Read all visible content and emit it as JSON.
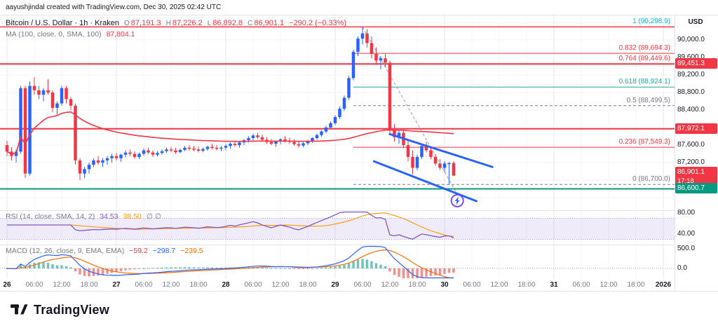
{
  "attribution": "aayushjindal created with TradingView.com, Dec 30, 2025 02:42 UTC",
  "header": {
    "symbol_line": "Bitcoin / U.S. Dollar · 1h · Kraken",
    "ohlc": [
      {
        "k": "O",
        "v": "87,191.3"
      },
      {
        "k": "H",
        "v": "87,226.2"
      },
      {
        "k": "L",
        "v": "86,892.8"
      },
      {
        "k": "C",
        "v": "86,901.1"
      }
    ],
    "change": "−290.2 (−0.33%)",
    "ma_label": "MA (100, close, 0, SMA, 100)",
    "ma_value": "87,804.1"
  },
  "legends": {
    "rsi_label": "RSI (14, close, SMA, 14, 2)",
    "rsi_v1": "34.53",
    "rsi_v2": "38.50",
    "rsi_extra": "∅ ∅",
    "macd_label": "MACD (12, 26, close, 9, EMA, EMA)",
    "macd_hist": "−59.2",
    "macd_main": "−298.7",
    "macd_signal": "−239.5"
  },
  "axis": {
    "currency": "USD"
  },
  "footer": {
    "brand": "TradingView"
  },
  "theme": {
    "up": "#2962ff",
    "down": "#f23645",
    "ma": "#f23645",
    "rsi": "#7e57c2",
    "rsi_ma": "#ff9800",
    "band": "#7e57c2",
    "macd": "#2962ff",
    "signal": "#ff6d00",
    "hist_up": "#26a69a",
    "hist_down": "#ef5350"
  },
  "chart_data": {
    "type": "candlestick",
    "symbol": "Bitcoin / U.S. Dollar",
    "exchange": "Kraken",
    "interval": "1h",
    "start_time_label": "Dec 26, 00:00 UTC",
    "end_time_label": "Dec 30, 02:00 UTC",
    "candles": [
      [
        87600,
        87700,
        87350,
        87450
      ],
      [
        87450,
        87550,
        87250,
        87350
      ],
      [
        87350,
        87500,
        87200,
        87450
      ],
      [
        87450,
        88950,
        87400,
        88900
      ],
      [
        88900,
        88950,
        86850,
        86950
      ],
      [
        86950,
        89050,
        86900,
        88950
      ],
      [
        88950,
        89150,
        88750,
        88850
      ],
      [
        88850,
        88950,
        88650,
        88750
      ],
      [
        88750,
        88900,
        88600,
        88850
      ],
      [
        88850,
        89100,
        88750,
        88800
      ],
      [
        88800,
        88850,
        88350,
        88450
      ],
      [
        88450,
        88600,
        88300,
        88550
      ],
      [
        88550,
        88950,
        88500,
        88900
      ],
      [
        88900,
        88950,
        88550,
        88650
      ],
      [
        88650,
        88700,
        88400,
        88500
      ],
      [
        88500,
        88550,
        87150,
        87250
      ],
      [
        87250,
        87300,
        86800,
        86950
      ],
      [
        86950,
        87100,
        86850,
        87050
      ],
      [
        87050,
        87200,
        86950,
        87150
      ],
      [
        87150,
        87300,
        87100,
        87250
      ],
      [
        87250,
        87350,
        87150,
        87200
      ],
      [
        87200,
        87300,
        87100,
        87250
      ],
      [
        87250,
        87350,
        87150,
        87300
      ],
      [
        87300,
        87400,
        87200,
        87350
      ],
      [
        87350,
        87420,
        87250,
        87300
      ],
      [
        87300,
        87400,
        87220,
        87380
      ],
      [
        87380,
        87480,
        87320,
        87430
      ],
      [
        87430,
        87500,
        87350,
        87400
      ],
      [
        87400,
        87460,
        87280,
        87330
      ],
      [
        87330,
        87430,
        87280,
        87400
      ],
      [
        87400,
        87520,
        87360,
        87480
      ],
      [
        87480,
        87540,
        87400,
        87430
      ],
      [
        87430,
        87480,
        87330,
        87380
      ],
      [
        87380,
        87460,
        87340,
        87420
      ],
      [
        87420,
        87500,
        87380,
        87460
      ],
      [
        87460,
        87540,
        87420,
        87500
      ],
      [
        87500,
        87560,
        87440,
        87480
      ],
      [
        87480,
        87530,
        87400,
        87440
      ],
      [
        87440,
        87520,
        87410,
        87490
      ],
      [
        87490,
        87580,
        87460,
        87540
      ],
      [
        87540,
        87600,
        87480,
        87520
      ],
      [
        87520,
        87580,
        87460,
        87500
      ],
      [
        87500,
        87560,
        87430,
        87470
      ],
      [
        87470,
        87540,
        87440,
        87510
      ],
      [
        87510,
        87590,
        87470,
        87560
      ],
      [
        87560,
        87630,
        87500,
        87540
      ],
      [
        87540,
        87600,
        87480,
        87520
      ],
      [
        87520,
        87580,
        87460,
        87540
      ],
      [
        87540,
        87620,
        87480,
        87580
      ],
      [
        87580,
        87660,
        87520,
        87630
      ],
      [
        87630,
        87700,
        87560,
        87600
      ],
      [
        87600,
        87680,
        87540,
        87660
      ],
      [
        87660,
        87740,
        87600,
        87710
      ],
      [
        87710,
        87800,
        87660,
        87760
      ],
      [
        87760,
        87860,
        87700,
        87820
      ],
      [
        87820,
        87880,
        87740,
        87780
      ],
      [
        87780,
        87840,
        87680,
        87720
      ],
      [
        87720,
        87780,
        87630,
        87670
      ],
      [
        87670,
        87740,
        87600,
        87630
      ],
      [
        87630,
        87700,
        87560,
        87680
      ],
      [
        87680,
        87760,
        87620,
        87730
      ],
      [
        87730,
        87800,
        87660,
        87700
      ],
      [
        87700,
        87770,
        87630,
        87670
      ],
      [
        87670,
        87730,
        87580,
        87620
      ],
      [
        87620,
        87680,
        87540,
        87590
      ],
      [
        87590,
        87670,
        87550,
        87640
      ],
      [
        87640,
        87720,
        87600,
        87690
      ],
      [
        87690,
        87780,
        87650,
        87760
      ],
      [
        87760,
        87860,
        87720,
        87830
      ],
      [
        87830,
        87940,
        87790,
        87910
      ],
      [
        87910,
        88040,
        87870,
        88000
      ],
      [
        88000,
        88140,
        87960,
        88100
      ],
      [
        88100,
        88280,
        88060,
        88240
      ],
      [
        88240,
        88480,
        88200,
        88430
      ],
      [
        88430,
        88730,
        88380,
        88680
      ],
      [
        88680,
        89180,
        88630,
        89130
      ],
      [
        89130,
        89780,
        89080,
        89730
      ],
      [
        89730,
        90080,
        89630,
        90030
      ],
      [
        90030,
        90298.9,
        89900,
        90150
      ],
      [
        90150,
        90250,
        89830,
        89930
      ],
      [
        89930,
        90080,
        89580,
        89680
      ],
      [
        89680,
        89830,
        89430,
        89530
      ],
      [
        89530,
        89630,
        89330,
        89580
      ],
      [
        89580,
        89680,
        89380,
        89480
      ],
      [
        89480,
        89530,
        87830,
        87930
      ],
      [
        87930,
        88080,
        87680,
        87780
      ],
      [
        87780,
        87930,
        87630,
        87880
      ],
      [
        87880,
        87960,
        87530,
        87600
      ],
      [
        87600,
        87700,
        87230,
        87330
      ],
      [
        87330,
        87480,
        86930,
        87080
      ],
      [
        87080,
        87380,
        87030,
        87330
      ],
      [
        87330,
        87630,
        87280,
        87580
      ],
      [
        87580,
        87680,
        87430,
        87480
      ],
      [
        87480,
        87560,
        87280,
        87330
      ],
      [
        87330,
        87400,
        87130,
        87180
      ],
      [
        87180,
        87280,
        87030,
        87080
      ],
      [
        87080,
        87230,
        86980,
        87180
      ],
      [
        87180,
        87210,
        86700,
        87190
      ],
      [
        87191.3,
        87226.2,
        86892.8,
        86901.1
      ]
    ],
    "price_ticks": [
      {
        "label": "90,000.0",
        "price": 90000
      },
      {
        "label": "89,600.0",
        "price": 89600
      },
      {
        "label": "89,200.0",
        "price": 89200
      },
      {
        "label": "88,800.0",
        "price": 88800
      },
      {
        "label": "88,400.0",
        "price": 88400
      },
      {
        "label": "87,600.0",
        "price": 87600
      },
      {
        "label": "87,200.0",
        "price": 87200
      }
    ],
    "time_ticks": [
      {
        "label": "26",
        "major": true
      },
      {
        "label": "06:00"
      },
      {
        "label": "12:00"
      },
      {
        "label": "18:00"
      },
      {
        "label": "27",
        "major": true
      },
      {
        "label": "06:00"
      },
      {
        "label": "12:00"
      },
      {
        "label": "18:00"
      },
      {
        "label": "28",
        "major": true
      },
      {
        "label": "06:00"
      },
      {
        "label": "12:00"
      },
      {
        "label": "18:00"
      },
      {
        "label": "29",
        "major": true
      },
      {
        "label": "06:00"
      },
      {
        "label": "12:00"
      },
      {
        "label": "18:00"
      },
      {
        "label": "30",
        "major": true
      },
      {
        "label": "06:00"
      },
      {
        "label": "12:00"
      },
      {
        "label": "18:00"
      },
      {
        "label": "31",
        "major": true
      },
      {
        "label": "06:00"
      },
      {
        "label": "12:00"
      },
      {
        "label": "18:00"
      },
      {
        "label": "2026",
        "major": true
      }
    ],
    "rsi_ticks": [
      {
        "label": "80.00",
        "value": 80
      },
      {
        "label": "40.00",
        "value": 40
      }
    ],
    "macd_ticks": [
      {
        "label": "500.0",
        "value": 500
      },
      {
        "label": "0.0",
        "value": 0
      }
    ],
    "horizontal_lines": [
      {
        "price": 90298.9,
        "color": "#f23645",
        "width": 1.5
      },
      {
        "price": 89451.3,
        "color": "#f23645",
        "width": 2
      },
      {
        "price": 87972.1,
        "color": "#f23645",
        "width": 2
      },
      {
        "price": 86600.7,
        "color": "#089981",
        "width": 2
      }
    ],
    "badges": [
      {
        "text": "89,451.3",
        "price": 89451.3,
        "bg": "#f23645"
      },
      {
        "text": "87,972.1",
        "price": 87972.1,
        "bg": "#f23645"
      },
      {
        "text": "86,901.1",
        "sub": "17:18",
        "price": 86901.1,
        "bg": "#f23645"
      },
      {
        "text": "86,600.7",
        "price": 86600.7,
        "bg": "#089981"
      }
    ],
    "fib": {
      "start_index": 76,
      "high_index": 78,
      "low_index": 98.8,
      "p_high": 90298.9,
      "p_low": 86700,
      "levels": [
        {
          "label": "1 (90,298.9)",
          "price": 90298.9,
          "color": "#00bcd4",
          "dash": false,
          "skip_line": true
        },
        {
          "label": "0.832 (89,694.3)",
          "price": 89694.3,
          "color": "#f23645",
          "dash": false
        },
        {
          "label": "0.764 (89,449.6)",
          "price": 89449.6,
          "color": "#f23645",
          "dash": false
        },
        {
          "label": "0.618 (88,924.1)",
          "price": 88924.1,
          "color": "#26a69a",
          "dash": false
        },
        {
          "label": "0.5 (88,499.5)",
          "price": 88499.5,
          "color": "#787b86",
          "dash": true
        },
        {
          "label": "0.236 (87,549.3)",
          "price": 87549.3,
          "color": "#f23645",
          "dash": false
        },
        {
          "label": "0 (86,700.0)",
          "price": 86700.0,
          "color": "#787b86",
          "dash": true
        }
      ]
    },
    "trendlines": [
      {
        "i1": 84,
        "p1": 87850,
        "i2": 106.5,
        "p2": 87100,
        "color": "#2962ff",
        "width": 3
      },
      {
        "i1": 80.5,
        "p1": 87230,
        "i2": 103,
        "p2": 86320,
        "color": "#2962ff",
        "width": 3
      }
    ],
    "marker": {
      "i": 98.8,
      "price": 86330,
      "type": "lightning"
    },
    "indicators": {
      "ma": {
        "type": "SMA",
        "length": 100
      },
      "rsi": {
        "length": 14,
        "smoothing": "SMA 14"
      },
      "macd": {
        "fast": 12,
        "slow": 26,
        "signal": 9
      }
    }
  }
}
